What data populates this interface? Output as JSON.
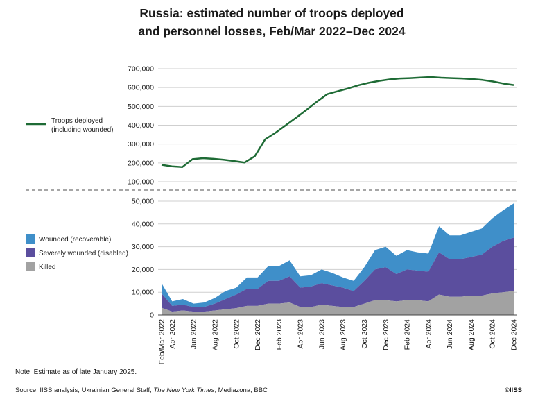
{
  "title_line1": "Russia: estimated number of troops deployed",
  "title_line2": "and personnel losses, Feb/Mar 2022–Dec 2024",
  "note": "Note: Estimate as of late January 2025.",
  "source_prefix": "Source: IISS analysis; Ukrainian General Staff; ",
  "source_italic": "The New York Times",
  "source_suffix": "; Mediazona; BBC",
  "copyright": "©IISS",
  "colors": {
    "troops": "#1e6b35",
    "wounded": "#3f8fc9",
    "severely": "#5b4e9e",
    "killed": "#a2a2a2",
    "grid": "#cfcfcf",
    "divider": "#888888"
  },
  "chart_data": [
    {
      "type": "line",
      "ylim": [
        100000,
        700000
      ],
      "yticks": [
        "100,000",
        "200,000",
        "300,000",
        "400,000",
        "500,000",
        "600,000",
        "700,000"
      ],
      "ytick_values": [
        100000,
        200000,
        300000,
        400000,
        500000,
        600000,
        700000
      ],
      "grid": true,
      "legend_position": "left",
      "series": [
        {
          "name": "Troops deployed (including wounded)",
          "name_line1": "Troops deployed",
          "name_line2": "(including wounded)",
          "values": [
            190000,
            182000,
            178000,
            220000,
            225000,
            222000,
            217000,
            210000,
            202000,
            235000,
            325000,
            360000,
            400000,
            440000,
            482000,
            525000,
            565000,
            580000,
            595000,
            612000,
            625000,
            635000,
            643000,
            648000,
            650000,
            653000,
            656000,
            652000,
            650000,
            648000,
            645000,
            640000,
            632000,
            621000,
            613000
          ]
        }
      ]
    },
    {
      "type": "area",
      "stacked": true,
      "ylim": [
        0,
        50000
      ],
      "yticks": [
        "0",
        "10,000",
        "20,000",
        "30,000",
        "40,000",
        "50,000"
      ],
      "ytick_values": [
        0,
        10000,
        20000,
        30000,
        40000,
        50000
      ],
      "grid": true,
      "legend_position": "left",
      "categories": [
        "Feb/Mar 2022",
        "Apr 2022",
        "May 2022",
        "Jun 2022",
        "Jul 2022",
        "Aug 2022",
        "Sep 2022",
        "Oct 2022",
        "Nov 2022",
        "Dec 2022",
        "Jan 2023",
        "Feb 2023",
        "Mar 2023",
        "Apr 2023",
        "May 2023",
        "Jun 2023",
        "Jul 2023",
        "Aug 2023",
        "Sep 2023",
        "Oct 2023",
        "Nov 2023",
        "Dec 2023",
        "Jan 2024",
        "Feb 2024",
        "Mar 2024",
        "Apr 2024",
        "May 2024",
        "Jun 2024",
        "Jul 2024",
        "Aug 2024",
        "Sep 2024",
        "Oct 2024",
        "Nov 2024",
        "Dec 2024"
      ],
      "tick_labels": [
        "Feb/Mar 2022",
        "Apr 2022",
        "Jun 2022",
        "Aug 2022",
        "Oct 2022",
        "Dec 2022",
        "Feb 2023",
        "Apr 2023",
        "Jun 2023",
        "Aug 2023",
        "Oct 2023",
        "Dec 2023",
        "Feb 2024",
        "Apr 2024",
        "Jun 2024",
        "Aug 2024",
        "Oct 2024",
        "Dec 2024"
      ],
      "series": [
        {
          "name": "Killed",
          "values": [
            3200,
            1500,
            2000,
            1500,
            1500,
            2000,
            2500,
            3000,
            4000,
            4000,
            5000,
            5000,
            5500,
            3500,
            3500,
            4500,
            4000,
            3500,
            3500,
            5000,
            6500,
            6500,
            6000,
            6500,
            6500,
            6000,
            9000,
            8000,
            8000,
            8500,
            8500,
            9500,
            10000,
            10500
          ]
        },
        {
          "name": "Severely wounded (disabled)",
          "values": [
            6300,
            2500,
            2500,
            2000,
            2000,
            3000,
            4500,
            6000,
            7500,
            7500,
            10000,
            10000,
            11500,
            8500,
            9000,
            9500,
            9000,
            8500,
            7000,
            10000,
            13500,
            14500,
            12000,
            13500,
            13000,
            13000,
            18500,
            16500,
            16500,
            17000,
            18000,
            20500,
            22500,
            23500
          ]
        },
        {
          "name": "Wounded (recoverable)",
          "values": [
            4500,
            2000,
            2500,
            1500,
            2000,
            2500,
            3500,
            3000,
            5000,
            5000,
            6500,
            6500,
            7000,
            5000,
            5000,
            6000,
            5500,
            4500,
            4500,
            6000,
            8500,
            9000,
            8000,
            8500,
            8000,
            8000,
            11500,
            10500,
            10500,
            11000,
            11500,
            12500,
            13500,
            15000
          ]
        }
      ]
    }
  ]
}
